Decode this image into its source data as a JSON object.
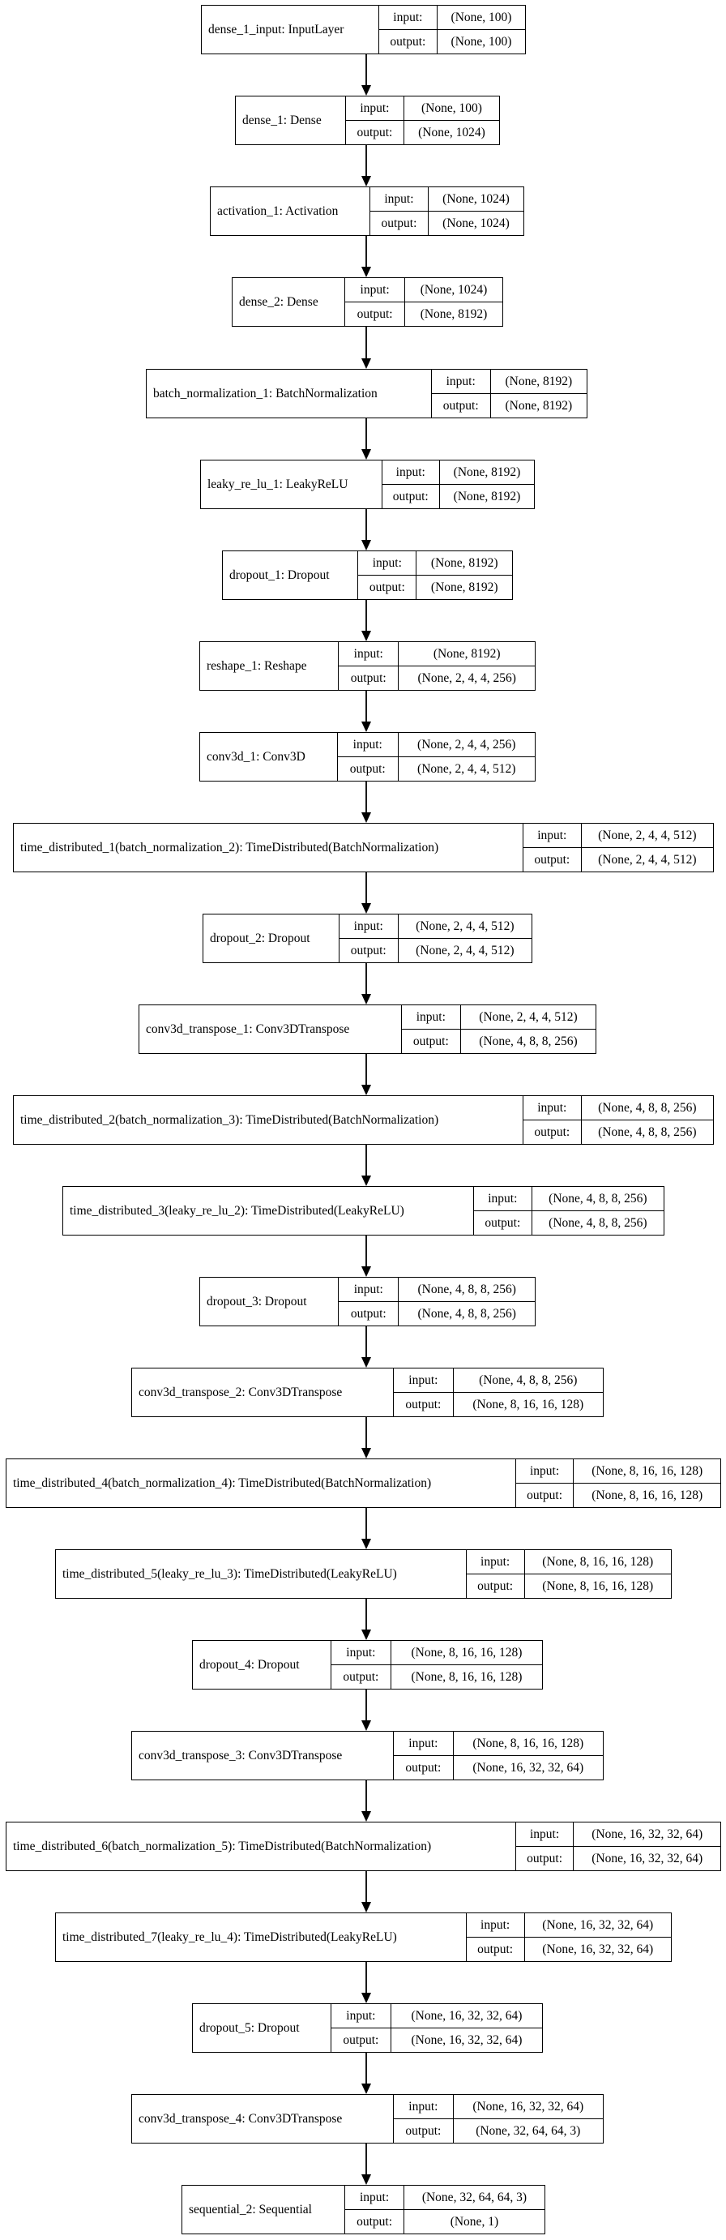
{
  "layers": [
    {
      "name": "dense_1_input: InputLayer",
      "input": "(None, 100)",
      "output": "(None, 100)"
    },
    {
      "name": "dense_1: Dense",
      "input": "(None, 100)",
      "output": "(None, 1024)"
    },
    {
      "name": "activation_1: Activation",
      "input": "(None, 1024)",
      "output": "(None, 1024)"
    },
    {
      "name": "dense_2: Dense",
      "input": "(None, 1024)",
      "output": "(None, 8192)"
    },
    {
      "name": "batch_normalization_1: BatchNormalization",
      "input": "(None, 8192)",
      "output": "(None, 8192)"
    },
    {
      "name": "leaky_re_lu_1: LeakyReLU",
      "input": "(None, 8192)",
      "output": "(None, 8192)"
    },
    {
      "name": "dropout_1: Dropout",
      "input": "(None, 8192)",
      "output": "(None, 8192)"
    },
    {
      "name": "reshape_1: Reshape",
      "input": "(None, 8192)",
      "output": "(None, 2, 4, 4, 256)"
    },
    {
      "name": "conv3d_1: Conv3D",
      "input": "(None, 2, 4, 4, 256)",
      "output": "(None, 2, 4, 4, 512)"
    },
    {
      "name": "time_distributed_1(batch_normalization_2): TimeDistributed(BatchNormalization)",
      "input": "(None, 2, 4, 4, 512)",
      "output": "(None, 2, 4, 4, 512)"
    },
    {
      "name": "dropout_2: Dropout",
      "input": "(None, 2, 4, 4, 512)",
      "output": "(None, 2, 4, 4, 512)"
    },
    {
      "name": "conv3d_transpose_1: Conv3DTranspose",
      "input": "(None, 2, 4, 4, 512)",
      "output": "(None, 4, 8, 8, 256)"
    },
    {
      "name": "time_distributed_2(batch_normalization_3): TimeDistributed(BatchNormalization)",
      "input": "(None, 4, 8, 8, 256)",
      "output": "(None, 4, 8, 8, 256)"
    },
    {
      "name": "time_distributed_3(leaky_re_lu_2): TimeDistributed(LeakyReLU)",
      "input": "(None, 4, 8, 8, 256)",
      "output": "(None, 4, 8, 8, 256)"
    },
    {
      "name": "dropout_3: Dropout",
      "input": "(None, 4, 8, 8, 256)",
      "output": "(None, 4, 8, 8, 256)"
    },
    {
      "name": "conv3d_transpose_2: Conv3DTranspose",
      "input": "(None, 4, 8, 8, 256)",
      "output": "(None, 8, 16, 16, 128)"
    },
    {
      "name": "time_distributed_4(batch_normalization_4): TimeDistributed(BatchNormalization)",
      "input": "(None, 8, 16, 16, 128)",
      "output": "(None, 8, 16, 16, 128)"
    },
    {
      "name": "time_distributed_5(leaky_re_lu_3): TimeDistributed(LeakyReLU)",
      "input": "(None, 8, 16, 16, 128)",
      "output": "(None, 8, 16, 16, 128)"
    },
    {
      "name": "dropout_4: Dropout",
      "input": "(None, 8, 16, 16, 128)",
      "output": "(None, 8, 16, 16, 128)"
    },
    {
      "name": "conv3d_transpose_3: Conv3DTranspose",
      "input": "(None, 8, 16, 16, 128)",
      "output": "(None, 16, 32, 32, 64)"
    },
    {
      "name": "time_distributed_6(batch_normalization_5): TimeDistributed(BatchNormalization)",
      "input": "(None, 16, 32, 32, 64)",
      "output": "(None, 16, 32, 32, 64)"
    },
    {
      "name": "time_distributed_7(leaky_re_lu_4): TimeDistributed(LeakyReLU)",
      "input": "(None, 16, 32, 32, 64)",
      "output": "(None, 16, 32, 32, 64)"
    },
    {
      "name": "dropout_5: Dropout",
      "input": "(None, 16, 32, 32, 64)",
      "output": "(None, 16, 32, 32, 64)"
    },
    {
      "name": "conv3d_transpose_4: Conv3DTranspose",
      "input": "(None, 16, 32, 32, 64)",
      "output": "(None, 32, 64, 64, 3)"
    },
    {
      "name": "sequential_2: Sequential",
      "input": "(None, 32, 64, 64, 3)",
      "output": "(None, 1)"
    }
  ],
  "labels": {
    "input": "input:",
    "output": "output:"
  }
}
